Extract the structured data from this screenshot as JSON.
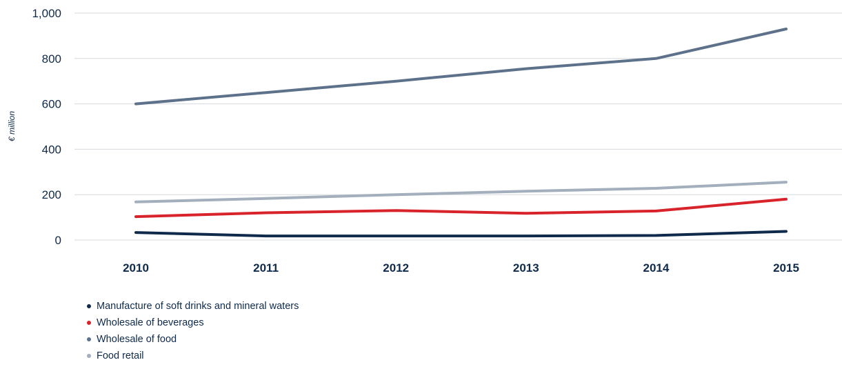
{
  "chart_data": {
    "type": "line",
    "x": [
      "2010",
      "2011",
      "2012",
      "2013",
      "2014",
      "2015"
    ],
    "ylabel": "€ million",
    "ylim": [
      0,
      1000
    ],
    "yticks": [
      "0",
      "200",
      "400",
      "600",
      "800",
      "1,000"
    ],
    "yticks_values": [
      0,
      200,
      400,
      600,
      800,
      1000
    ],
    "grid": true,
    "legend_position": "bottom-left",
    "series": [
      {
        "name": "Manufacture of soft drinks and mineral waters",
        "color": "#0f2a4a",
        "values": [
          33,
          18,
          18,
          18,
          20,
          38
        ]
      },
      {
        "name": "Wholesale of beverages",
        "color": "#d8232a",
        "values": [
          103,
          120,
          130,
          118,
          128,
          180
        ]
      },
      {
        "name": "Wholesale of food",
        "color": "#5d728a",
        "values": [
          600,
          650,
          700,
          755,
          800,
          930
        ]
      },
      {
        "name": "Food retail",
        "color": "#a3afbd",
        "values": [
          168,
          183,
          200,
          215,
          228,
          255
        ]
      }
    ]
  }
}
